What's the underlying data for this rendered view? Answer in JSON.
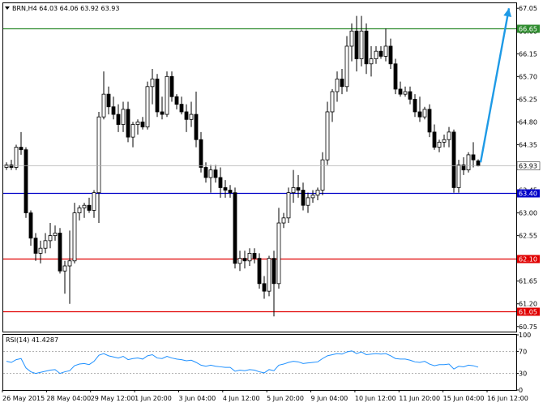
{
  "header": {
    "symbol_line": "BRN,H4  64.03 64.06 63.92 63.93"
  },
  "rsi": {
    "label": "RSI(14) 41.4287",
    "levels": [
      70,
      30
    ],
    "axis_labels": [
      "100",
      "70",
      "30",
      "0"
    ]
  },
  "colors": {
    "background": "#ffffff",
    "frame": "#000000",
    "candle_body": "#000000",
    "candle_bull_fill": "#ffffff",
    "support_level": "#0000c8",
    "red_level": "#e00000",
    "green_level": "#2e8b2e",
    "arrow": "#1e9ae6",
    "rsi_line": "#1e90ff",
    "grid_dotted": "#9a9a9a"
  },
  "chart_data": {
    "type": "candlestick",
    "title": "BRN,H4",
    "symbol": "BRN",
    "timeframe": "H4",
    "last_ohlc": {
      "open": 64.03,
      "high": 64.06,
      "low": 63.92,
      "close": 63.93
    },
    "current_price": 63.93,
    "y_range": [
      60.65,
      67.15
    ],
    "y_ticks": [
      "67.05",
      "66.60",
      "66.15",
      "65.70",
      "65.25",
      "64.80",
      "64.35",
      "63.90",
      "63.45",
      "63.00",
      "62.55",
      "62.10",
      "61.65",
      "61.20",
      "60.75"
    ],
    "x_labels": [
      "26 May 2015",
      "28 May 04:00",
      "29 May 12:00",
      "1 Jun 20:00",
      "3 Jun 04:00",
      "4 Jun 12:00",
      "5 Jun 20:00",
      "9 Jun 04:00",
      "10 Jun 12:00",
      "11 Jun 20:00",
      "15 Jun 04:00",
      "16 Jun 12:00"
    ],
    "levels": [
      {
        "name": "resistance",
        "value": 66.65,
        "label": "66.65",
        "color": "#2e8b2e"
      },
      {
        "name": "support",
        "value": 63.4,
        "label": "63.40",
        "color": "#0000c8"
      },
      {
        "name": "support-2",
        "value": 62.1,
        "label": "62.10",
        "color": "#e00000"
      },
      {
        "name": "support-3",
        "value": 61.05,
        "label": "61.05",
        "color": "#e00000"
      }
    ],
    "projection_arrow": {
      "from_price": 64.0,
      "to_price": 67.05,
      "color": "#1e9ae6"
    },
    "candles": [
      [
        63.9,
        64.0,
        63.85,
        63.95
      ],
      [
        63.95,
        64.05,
        63.85,
        63.9
      ],
      [
        63.9,
        64.35,
        63.85,
        64.3
      ],
      [
        64.3,
        64.6,
        64.15,
        64.25
      ],
      [
        64.25,
        64.3,
        62.9,
        63.0
      ],
      [
        63.0,
        63.05,
        62.35,
        62.5
      ],
      [
        62.5,
        62.6,
        62.05,
        62.2
      ],
      [
        62.2,
        62.45,
        62.0,
        62.3
      ],
      [
        62.3,
        62.6,
        62.2,
        62.45
      ],
      [
        62.45,
        62.8,
        62.3,
        62.55
      ],
      [
        62.55,
        62.75,
        62.45,
        62.6
      ],
      [
        62.6,
        62.7,
        61.8,
        61.85
      ],
      [
        61.85,
        62.05,
        61.4,
        61.95
      ],
      [
        61.95,
        62.65,
        61.2,
        62.05
      ],
      [
        62.05,
        63.2,
        62.0,
        63.0
      ],
      [
        63.0,
        63.15,
        62.85,
        63.1
      ],
      [
        63.1,
        63.2,
        62.9,
        63.15
      ],
      [
        63.15,
        63.3,
        63.0,
        63.05
      ],
      [
        63.05,
        63.45,
        62.9,
        63.4
      ],
      [
        63.4,
        65.0,
        62.8,
        64.9
      ],
      [
        64.9,
        65.8,
        64.85,
        65.35
      ],
      [
        65.35,
        65.5,
        64.95,
        65.1
      ],
      [
        65.1,
        65.3,
        64.85,
        64.95
      ],
      [
        64.95,
        65.15,
        64.6,
        64.75
      ],
      [
        64.75,
        65.2,
        64.6,
        65.05
      ],
      [
        65.05,
        65.2,
        64.4,
        64.5
      ],
      [
        64.5,
        64.8,
        64.3,
        64.75
      ],
      [
        64.75,
        64.85,
        64.55,
        64.8
      ],
      [
        64.8,
        64.9,
        64.65,
        64.7
      ],
      [
        64.7,
        65.6,
        64.65,
        65.5
      ],
      [
        65.5,
        65.85,
        65.15,
        65.65
      ],
      [
        65.65,
        65.75,
        64.9,
        65.0
      ],
      [
        65.0,
        65.3,
        64.85,
        64.95
      ],
      [
        64.95,
        65.8,
        64.9,
        65.7
      ],
      [
        65.7,
        65.8,
        65.2,
        65.3
      ],
      [
        65.3,
        65.35,
        65.05,
        65.15
      ],
      [
        65.15,
        65.3,
        64.95,
        65.0
      ],
      [
        65.0,
        65.15,
        64.6,
        64.85
      ],
      [
        64.85,
        65.2,
        64.7,
        64.95
      ],
      [
        64.95,
        65.4,
        64.3,
        64.45
      ],
      [
        64.45,
        64.6,
        63.8,
        63.9
      ],
      [
        63.9,
        64.0,
        63.6,
        63.7
      ],
      [
        63.7,
        63.95,
        63.4,
        63.85
      ],
      [
        63.85,
        63.95,
        63.6,
        63.7
      ],
      [
        63.7,
        63.9,
        63.3,
        63.5
      ],
      [
        63.5,
        63.65,
        63.3,
        63.45
      ],
      [
        63.45,
        63.55,
        63.3,
        63.4
      ],
      [
        63.4,
        63.5,
        61.9,
        62.0
      ],
      [
        62.0,
        62.25,
        61.85,
        62.1
      ],
      [
        62.1,
        62.25,
        61.9,
        62.05
      ],
      [
        62.05,
        62.3,
        61.95,
        62.2
      ],
      [
        62.2,
        62.3,
        62.0,
        62.1
      ],
      [
        62.1,
        62.2,
        61.5,
        61.6
      ],
      [
        61.6,
        61.75,
        61.3,
        61.45
      ],
      [
        61.45,
        62.15,
        61.35,
        62.1
      ],
      [
        62.1,
        62.25,
        60.95,
        61.6
      ],
      [
        61.6,
        63.1,
        61.5,
        62.8
      ],
      [
        62.8,
        63.0,
        62.7,
        62.9
      ],
      [
        62.9,
        63.5,
        62.8,
        63.4
      ],
      [
        63.4,
        63.85,
        63.2,
        63.5
      ],
      [
        63.5,
        63.75,
        63.3,
        63.45
      ],
      [
        63.45,
        63.6,
        63.05,
        63.15
      ],
      [
        63.15,
        63.4,
        63.0,
        63.3
      ],
      [
        63.3,
        63.45,
        63.2,
        63.35
      ],
      [
        63.35,
        63.5,
        63.25,
        63.45
      ],
      [
        63.45,
        64.2,
        63.35,
        64.05
      ],
      [
        64.05,
        65.2,
        63.95,
        65.0
      ],
      [
        65.0,
        65.45,
        64.8,
        65.4
      ],
      [
        65.4,
        65.8,
        65.2,
        65.65
      ],
      [
        65.65,
        65.85,
        65.35,
        65.5
      ],
      [
        65.5,
        66.5,
        65.4,
        66.3
      ],
      [
        66.3,
        66.75,
        66.0,
        66.6
      ],
      [
        66.6,
        66.9,
        65.8,
        66.05
      ],
      [
        66.05,
        66.9,
        65.9,
        66.6
      ],
      [
        66.6,
        66.75,
        65.75,
        65.95
      ],
      [
        65.95,
        66.3,
        65.7,
        66.05
      ],
      [
        66.05,
        66.3,
        65.95,
        66.2
      ],
      [
        66.2,
        66.3,
        66.05,
        66.1
      ],
      [
        66.1,
        66.65,
        66.0,
        66.3
      ],
      [
        66.3,
        66.45,
        65.85,
        65.95
      ],
      [
        65.95,
        66.05,
        65.35,
        65.45
      ],
      [
        65.45,
        65.6,
        65.3,
        65.35
      ],
      [
        65.35,
        65.5,
        65.3,
        65.4
      ],
      [
        65.4,
        65.5,
        65.15,
        65.25
      ],
      [
        65.25,
        65.35,
        64.9,
        65.0
      ],
      [
        65.0,
        65.3,
        64.8,
        64.9
      ],
      [
        64.9,
        65.1,
        64.85,
        65.05
      ],
      [
        65.05,
        65.15,
        64.5,
        64.6
      ],
      [
        64.6,
        64.75,
        64.25,
        64.3
      ],
      [
        64.3,
        64.45,
        64.2,
        64.4
      ],
      [
        64.4,
        64.55,
        64.3,
        64.45
      ],
      [
        64.45,
        64.7,
        64.3,
        64.6
      ],
      [
        64.6,
        64.65,
        63.4,
        63.5
      ],
      [
        63.5,
        64.05,
        63.4,
        63.95
      ],
      [
        63.95,
        64.1,
        63.75,
        63.85
      ],
      [
        63.85,
        64.2,
        63.8,
        64.15
      ],
      [
        64.15,
        64.4,
        63.9,
        64.05
      ],
      [
        64.03,
        64.06,
        63.92,
        63.93
      ]
    ],
    "rsi_values": [
      52,
      50,
      55,
      57,
      40,
      33,
      30,
      32,
      34,
      36,
      37,
      30,
      33,
      35,
      44,
      47,
      48,
      46,
      52,
      63,
      66,
      62,
      60,
      58,
      61,
      55,
      57,
      58,
      56,
      62,
      64,
      58,
      57,
      61,
      58,
      56,
      55,
      53,
      54,
      50,
      45,
      43,
      45,
      43,
      42,
      41,
      41,
      34,
      36,
      35,
      37,
      36,
      33,
      31,
      37,
      35,
      45,
      47,
      50,
      52,
      51,
      48,
      49,
      50,
      51,
      57,
      62,
      64,
      66,
      65,
      69,
      71,
      66,
      69,
      64,
      65,
      66,
      65,
      66,
      62,
      57,
      56,
      56,
      54,
      51,
      50,
      52,
      47,
      44,
      46,
      46,
      47,
      38,
      43,
      42,
      45,
      44,
      41.43
    ]
  }
}
